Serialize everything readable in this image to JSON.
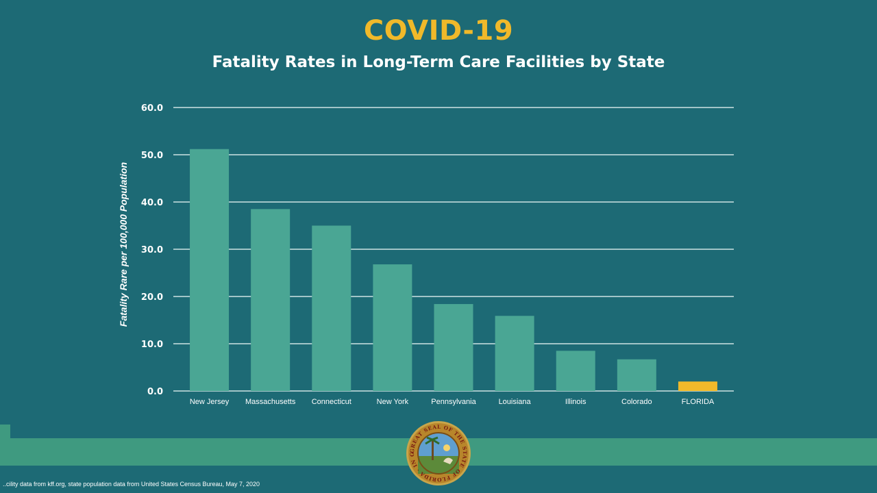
{
  "slide": {
    "title": "COVID-19",
    "subtitle": "Fatality Rates in Long-Term Care Facilities by State",
    "footnote": "..cility data from kff.org, state population data from United States Census Bureau, May 7, 2020",
    "seal_text": "GREAT SEAL OF THE STATE OF FLORIDA · IN GOD WE TRUST"
  },
  "colors": {
    "background": "#1d6a75",
    "bar": "#4aa694",
    "highlight_bar": "#f0b92a",
    "band": "#3f9a80",
    "title": "#f0b92a"
  },
  "chart_data": {
    "type": "bar",
    "title": "Fatality Rates in Long-Term Care Facilities by State",
    "xlabel": "",
    "ylabel": "Fatality Rare per 100,000 Population",
    "ylim": [
      0,
      60
    ],
    "yticks": [
      "0.0",
      "10.0",
      "20.0",
      "30.0",
      "40.0",
      "50.0",
      "60.0"
    ],
    "grid": true,
    "categories": [
      "New Jersey",
      "Massachusetts",
      "Connecticut",
      "New York",
      "Pennsylvania",
      "Louisiana",
      "Illinois",
      "Colorado",
      "FLORIDA"
    ],
    "values": [
      51.2,
      38.5,
      35.0,
      26.8,
      18.4,
      15.9,
      8.5,
      6.7,
      2.0
    ],
    "highlight": "FLORIDA"
  }
}
